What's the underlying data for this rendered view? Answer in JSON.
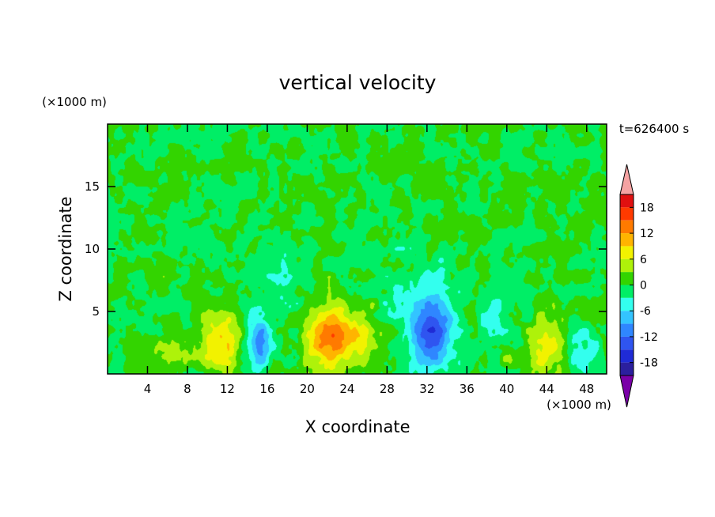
{
  "chart_data": {
    "type": "heatmap",
    "title": "vertical velocity",
    "xlabel": "X coordinate",
    "ylabel": "Z coordinate",
    "x_unit": "(×1000 m)",
    "y_unit": "(×1000 m)",
    "time_label": "t=626400 s",
    "xlim": [
      0,
      50
    ],
    "ylim": [
      0,
      20
    ],
    "x_ticks": [
      4,
      8,
      12,
      16,
      20,
      24,
      28,
      32,
      36,
      40,
      44,
      48
    ],
    "y_ticks": [
      5,
      10,
      15
    ],
    "colorbar": {
      "levels": [
        -21,
        -18,
        -15,
        -12,
        -9,
        -6,
        -3,
        0,
        3,
        6,
        9,
        12,
        15,
        18,
        21
      ],
      "tick_labels": [
        18,
        12,
        6,
        0,
        -6,
        -12,
        -18
      ],
      "colors": [
        "#7a00a8",
        "#2b1f9e",
        "#1f2bd6",
        "#2f55f0",
        "#2f86ff",
        "#33c4ff",
        "#33ffee",
        "#00ee66",
        "#33d400",
        "#aef20a",
        "#f2f200",
        "#ffb400",
        "#ff7a00",
        "#ff3a00",
        "#e01010",
        "#f5a3a3"
      ],
      "extend": "both"
    },
    "features": [
      {
        "x": 11.4,
        "z": 2.5,
        "value": 9,
        "sx": 1.3,
        "sz": 1.9
      },
      {
        "x": 22.4,
        "z": 3.0,
        "value": 13,
        "sx": 1.8,
        "sz": 2.0
      },
      {
        "x": 44.3,
        "z": 2.2,
        "value": 8,
        "sx": 1.3,
        "sz": 1.8
      },
      {
        "x": 15.0,
        "z": 2.5,
        "value": -10,
        "sx": 0.9,
        "sz": 1.6
      },
      {
        "x": 32.6,
        "z": 3.4,
        "value": -13,
        "sx": 1.5,
        "sz": 2.0
      },
      {
        "x": 30.5,
        "z": 6.5,
        "value": -3,
        "sx": 2.5,
        "sz": 3.0
      },
      {
        "x": 47.5,
        "z": 1.8,
        "value": -5,
        "sx": 1.4,
        "sz": 1.6
      },
      {
        "x": 6.0,
        "z": 2.0,
        "value": 3,
        "sx": 1.5,
        "sz": 1.0
      },
      {
        "x": 26.0,
        "z": 3.0,
        "value": 4,
        "sx": 1.4,
        "sz": 1.6
      },
      {
        "x": 30.2,
        "z": 8.6,
        "value": 4,
        "sx": 0.7,
        "sz": 0.8
      },
      {
        "x": 17.5,
        "z": 7.0,
        "value": -3,
        "sx": 2.0,
        "sz": 2.0
      },
      {
        "x": 38.5,
        "z": 4.5,
        "value": -4,
        "sx": 1.0,
        "sz": 1.5
      },
      {
        "x": 41.0,
        "z": 1.2,
        "value": 3,
        "sx": 1.2,
        "sz": 0.8
      }
    ]
  }
}
